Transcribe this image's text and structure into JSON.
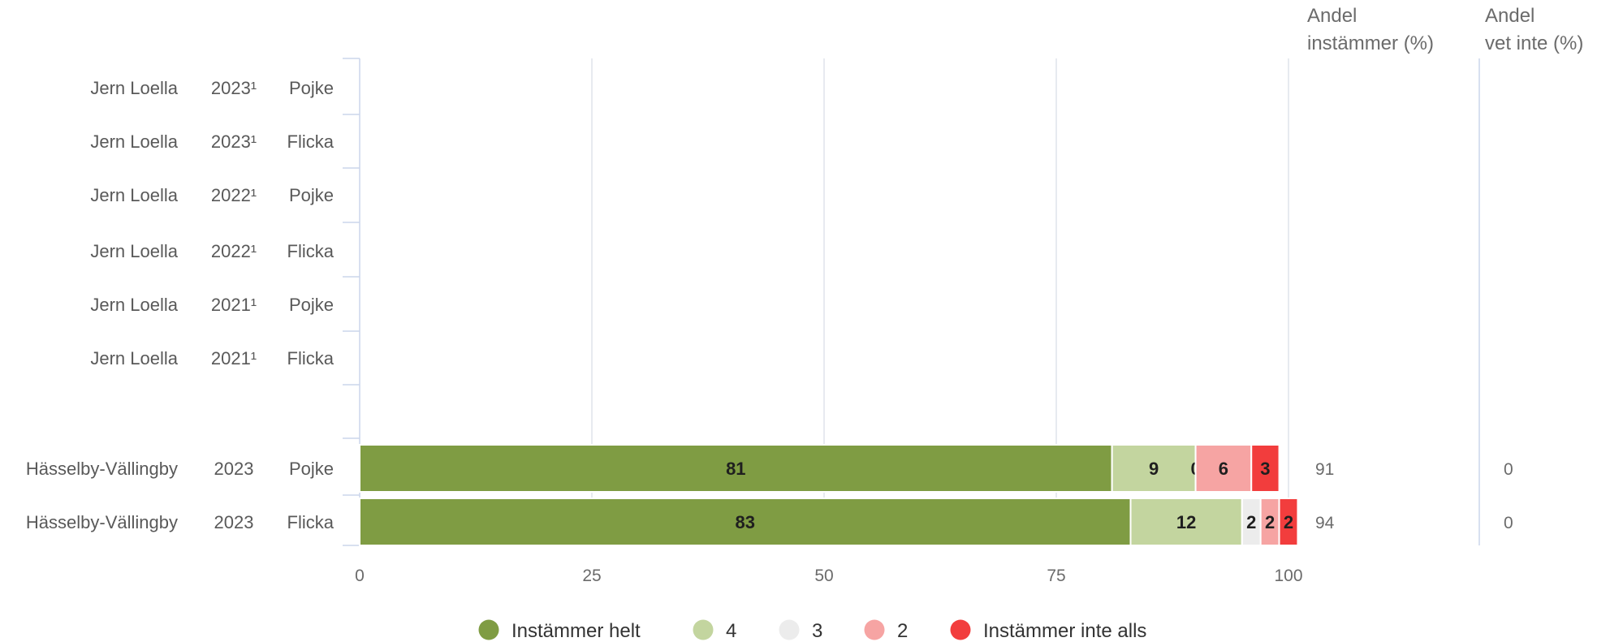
{
  "headers": {
    "agree": [
      "Andel",
      "instämmer (%)"
    ],
    "dontknow": [
      "Andel",
      "vet inte (%)"
    ]
  },
  "colors": {
    "Instämmer helt": "#7f9c43",
    "4": "#c3d59f",
    "3": "#ececec",
    "2": "#f6a4a3",
    "Instämmer inte alls": "#f23d3d"
  },
  "chart_data": {
    "type": "bar",
    "orientation": "horizontal",
    "stacked": true,
    "xlim": [
      0,
      100
    ],
    "xticks": [
      0,
      25,
      50,
      75,
      100
    ],
    "grid": true,
    "legend": "bottom",
    "categories": [
      [
        "Jern Loella",
        "2023¹",
        "Pojke"
      ],
      [
        "Jern Loella",
        "2023¹",
        "Flicka"
      ],
      [
        "Jern Loella",
        "2022¹",
        "Pojke"
      ],
      [
        "Jern Loella",
        "2022¹",
        "Flicka"
      ],
      [
        "Jern Loella",
        "2021¹",
        "Pojke"
      ],
      [
        "Jern Loella",
        "2021¹",
        "Flicka"
      ],
      [
        "Hässelby-Vällingby",
        "2023",
        "Pojke"
      ],
      [
        "Hässelby-Vällingby",
        "2023",
        "Flicka"
      ]
    ],
    "series": [
      {
        "name": "Instämmer helt",
        "values": [
          null,
          null,
          null,
          null,
          null,
          null,
          81,
          83
        ]
      },
      {
        "name": "4",
        "values": [
          null,
          null,
          null,
          null,
          null,
          null,
          9,
          12
        ]
      },
      {
        "name": "3",
        "values": [
          null,
          null,
          null,
          null,
          null,
          null,
          0,
          2
        ]
      },
      {
        "name": "2",
        "values": [
          null,
          null,
          null,
          null,
          null,
          null,
          6,
          2
        ]
      },
      {
        "name": "Instämmer inte alls",
        "values": [
          null,
          null,
          null,
          null,
          null,
          null,
          3,
          2
        ]
      }
    ],
    "andel_instammer": [
      null,
      null,
      null,
      null,
      null,
      null,
      "91",
      "94"
    ],
    "andel_vet_inte": [
      null,
      null,
      null,
      null,
      null,
      null,
      "0",
      "0"
    ]
  }
}
